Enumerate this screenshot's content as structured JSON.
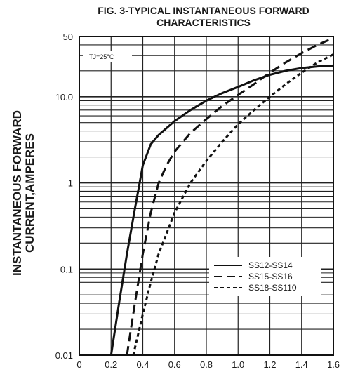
{
  "chart_data": {
    "type": "line",
    "title_line1": "FIG. 3-TYPICAL INSTANTANEOUS FORWARD",
    "title_line2": "CHARACTERISTICS",
    "ylabel_line1": "INSTANTANEOUS FORWARD",
    "ylabel_line2": "CURRENT,AMPERES",
    "xlabel": "",
    "x_scale": "linear",
    "y_scale": "log",
    "xlim": [
      0.0,
      1.6
    ],
    "ylim": [
      0.01,
      50
    ],
    "x_ticks": [
      0.0,
      0.2,
      0.4,
      0.6,
      0.8,
      1.0,
      1.2,
      1.4,
      1.6
    ],
    "x_tick_labels": [
      "0",
      "0.2",
      "0.4",
      "0.6",
      "0.8",
      "1.0",
      "1.2",
      "1.4",
      "1.6"
    ],
    "y_ticks": [
      0.01,
      0.1,
      1,
      10,
      50
    ],
    "y_tick_labels": [
      "0.01",
      "0.1",
      "1",
      "10.0",
      "50"
    ],
    "grid": true,
    "annotation": "TJ=25°C",
    "legend_position": "lower-right",
    "series": [
      {
        "name": "SS12-SS14",
        "style": "solid",
        "x": [
          0.2,
          0.25,
          0.3,
          0.35,
          0.38,
          0.4,
          0.45,
          0.5,
          0.6,
          0.7,
          0.8,
          0.9,
          1.0,
          1.1,
          1.2,
          1.3,
          1.4,
          1.5,
          1.6
        ],
        "y": [
          0.01,
          0.04,
          0.15,
          0.5,
          1.0,
          1.6,
          2.8,
          3.6,
          5.2,
          7.0,
          9.0,
          11.0,
          13.0,
          15.5,
          18.0,
          20.0,
          21.5,
          22.5,
          23.0
        ]
      },
      {
        "name": "SS15-SS16",
        "style": "dashed",
        "x": [
          0.3,
          0.35,
          0.4,
          0.45,
          0.5,
          0.55,
          0.6,
          0.7,
          0.8,
          0.9,
          1.0,
          1.1,
          1.2,
          1.3,
          1.4,
          1.5,
          1.6
        ],
        "y": [
          0.01,
          0.04,
          0.15,
          0.45,
          1.0,
          1.6,
          2.3,
          3.8,
          5.5,
          7.8,
          10.5,
          14.0,
          19.0,
          25.0,
          32.0,
          40.0,
          48.0
        ]
      },
      {
        "name": "SS18-SS110",
        "style": "dotted",
        "x": [
          0.34,
          0.4,
          0.45,
          0.5,
          0.6,
          0.7,
          0.8,
          0.9,
          1.0,
          1.1,
          1.2,
          1.3,
          1.4,
          1.5,
          1.6
        ],
        "y": [
          0.01,
          0.03,
          0.07,
          0.15,
          0.45,
          1.0,
          1.8,
          3.0,
          4.8,
          7.0,
          10.0,
          14.0,
          19.0,
          25.0,
          31.0
        ]
      }
    ]
  }
}
